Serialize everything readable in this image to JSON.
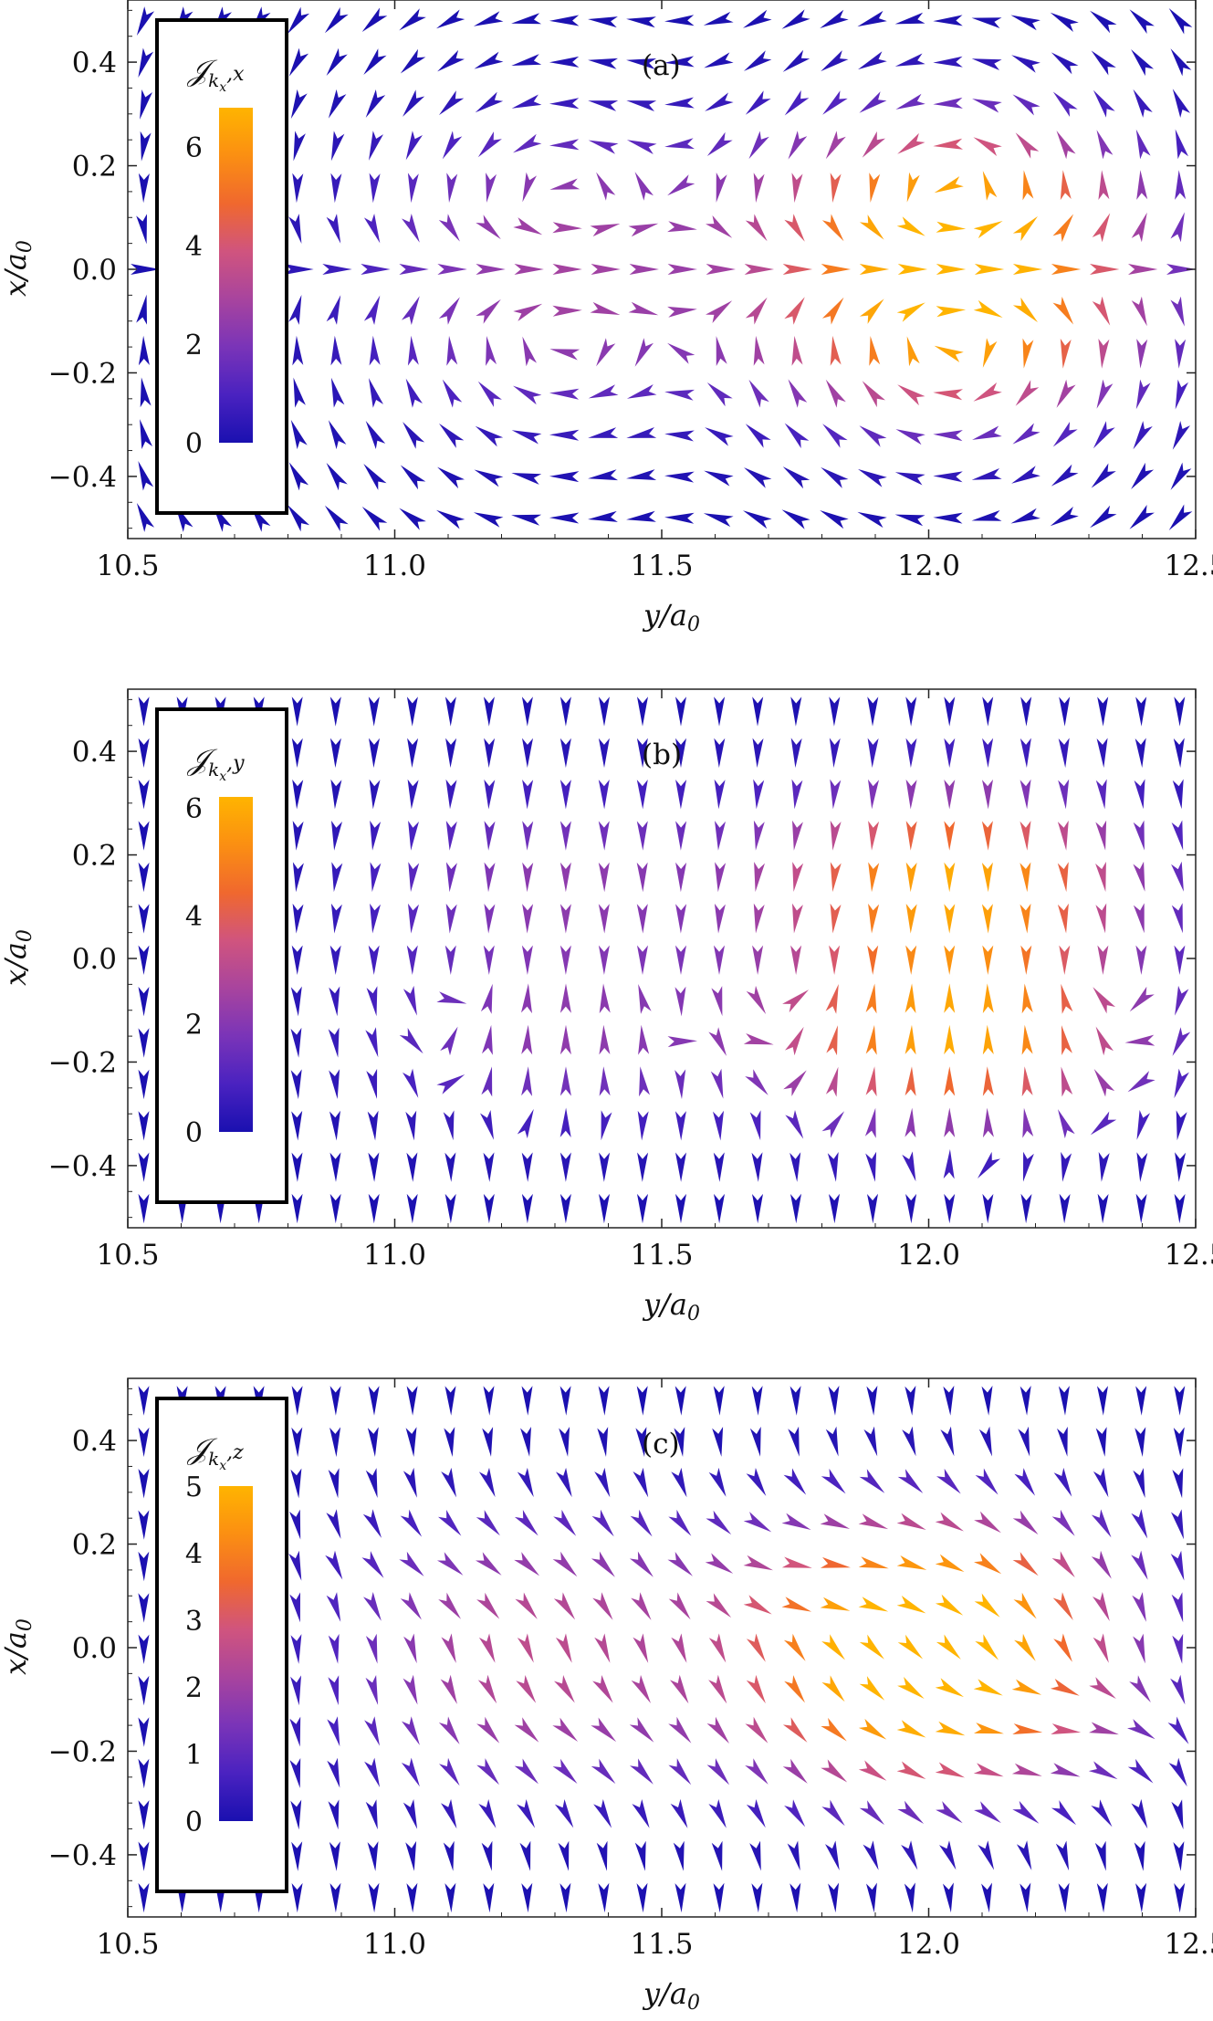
{
  "chart_data": [
    {
      "type": "vector-field",
      "panel_label": "(a)",
      "xlabel": "y/a",
      "xlabel_sub": "0",
      "ylabel": "x/a",
      "ylabel_sub": "0",
      "xlim": [
        10.5,
        12.5
      ],
      "ylim": [
        -0.52,
        0.52
      ],
      "xticks": [
        10.5,
        11.0,
        11.5,
        12.0,
        12.5
      ],
      "xtick_labels": [
        "10.5",
        "11.0",
        "11.5",
        "12.0",
        "12.5"
      ],
      "yticks": [
        0.4,
        0.2,
        0.0,
        -0.2,
        -0.4
      ],
      "ytick_labels": [
        "0.4",
        "0.2",
        "0.0",
        "−0.2",
        "−0.4"
      ],
      "colorbar": {
        "title_main": "𝒥",
        "title_sub": "k",
        "title_subsub": "x",
        "title_component": ",x",
        "min": 0,
        "max": 6.8,
        "ticks": [
          0,
          2,
          4,
          6
        ],
        "tick_labels": [
          "0",
          "2",
          "4",
          "6"
        ]
      },
      "field": {
        "pattern": "a",
        "vortices": [
          {
            "y": 11.3,
            "x": 0.12,
            "strength": 2.4
          },
          {
            "y": 11.3,
            "x": -0.12,
            "strength": 2.4
          },
          {
            "y": 12.05,
            "x": 0.12,
            "strength": 6.8
          },
          {
            "y": 12.05,
            "x": -0.12,
            "strength": 6.8
          }
        ]
      }
    },
    {
      "type": "vector-field",
      "panel_label": "(b)",
      "xlabel": "y/a",
      "xlabel_sub": "0",
      "ylabel": "x/a",
      "ylabel_sub": "0",
      "xlim": [
        10.5,
        12.5
      ],
      "ylim": [
        -0.52,
        0.52
      ],
      "xticks": [
        10.5,
        11.0,
        11.5,
        12.0,
        12.5
      ],
      "xtick_labels": [
        "10.5",
        "11.0",
        "11.5",
        "12.0",
        "12.5"
      ],
      "yticks": [
        0.4,
        0.2,
        0.0,
        -0.2,
        -0.4
      ],
      "ytick_labels": [
        "0.4",
        "0.2",
        "0.0",
        "−0.2",
        "−0.4"
      ],
      "colorbar": {
        "title_main": "𝒥",
        "title_sub": "k",
        "title_subsub": "x",
        "title_component": ",y",
        "min": 0,
        "max": 6.2,
        "ticks": [
          0,
          2,
          4,
          6
        ],
        "tick_labels": [
          "0",
          "2",
          "4",
          "6"
        ]
      },
      "field": {
        "pattern": "b",
        "vortices": [
          {
            "y": 11.3,
            "x": 0.15,
            "strength": 2.2
          },
          {
            "y": 11.3,
            "x": -0.15,
            "strength": 2.2
          },
          {
            "y": 12.05,
            "x": 0.15,
            "strength": 6.2
          },
          {
            "y": 12.05,
            "x": -0.15,
            "strength": 6.2
          }
        ]
      }
    },
    {
      "type": "vector-field",
      "panel_label": "(c)",
      "xlabel": "y/a",
      "xlabel_sub": "0",
      "ylabel": "x/a",
      "ylabel_sub": "0",
      "xlim": [
        10.5,
        12.5
      ],
      "ylim": [
        -0.52,
        0.52
      ],
      "xticks": [
        10.5,
        11.0,
        11.5,
        12.0,
        12.5
      ],
      "xtick_labels": [
        "10.5",
        "11.0",
        "11.5",
        "12.0",
        "12.5"
      ],
      "yticks": [
        0.4,
        0.2,
        0.0,
        -0.2,
        -0.4
      ],
      "ytick_labels": [
        "0.4",
        "0.2",
        "0.0",
        "−0.2",
        "−0.4"
      ],
      "colorbar": {
        "title_main": "𝒥",
        "title_sub": "k",
        "title_subsub": "x",
        "title_component": ",z",
        "min": 0,
        "max": 5.0,
        "ticks": [
          0,
          1,
          2,
          3,
          4,
          5
        ],
        "tick_labels": [
          "0",
          "1",
          "2",
          "3",
          "4",
          "5"
        ]
      },
      "field": {
        "pattern": "c",
        "vortices": [
          {
            "y": 11.25,
            "x": 0.1,
            "strength": 2.0
          },
          {
            "y": 11.25,
            "x": -0.12,
            "strength": 2.0
          },
          {
            "y": 12.0,
            "x": 0.1,
            "strength": 5.0
          },
          {
            "y": 12.0,
            "x": -0.12,
            "strength": 5.0
          }
        ]
      }
    }
  ],
  "colormap": [
    "#1a10b0",
    "#4a22c0",
    "#7a34b8",
    "#a8449e",
    "#d0547e",
    "#f0682e",
    "#fb8f12",
    "#ffb400"
  ]
}
